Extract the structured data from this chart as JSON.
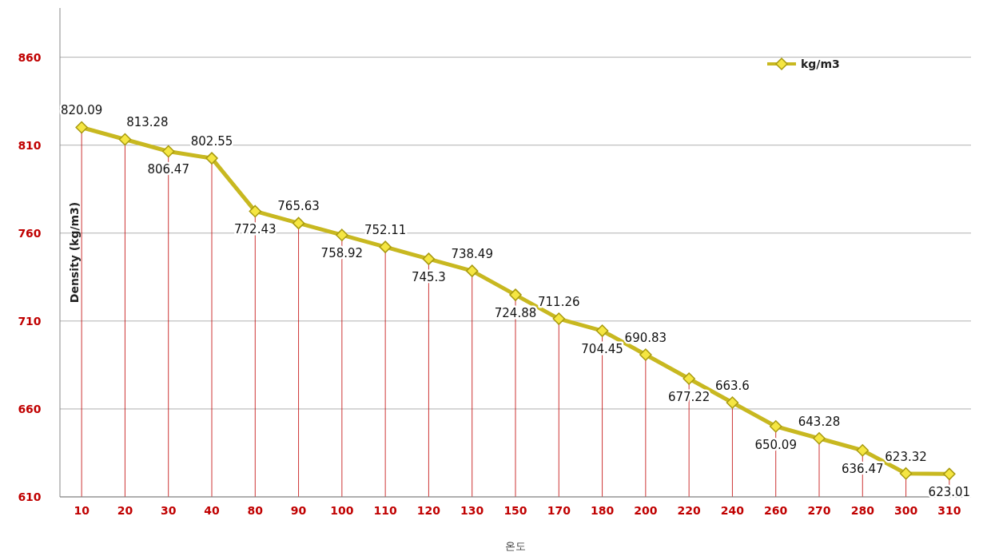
{
  "chart_data": {
    "type": "line",
    "categories": [
      "10",
      "20",
      "30",
      "40",
      "80",
      "90",
      "100",
      "110",
      "120",
      "130",
      "150",
      "170",
      "180",
      "200",
      "220",
      "240",
      "260",
      "270",
      "280",
      "300",
      "310"
    ],
    "series": [
      {
        "name": "kg/m3",
        "color": "#c8b820",
        "values": [
          820.09,
          813.28,
          806.47,
          802.55,
          772.43,
          765.63,
          758.92,
          752.11,
          745.3,
          738.49,
          724.88,
          711.26,
          704.45,
          690.83,
          677.22,
          663.6,
          650.09,
          643.28,
          636.47,
          623.32,
          623.01
        ]
      }
    ],
    "xlabel": "온도",
    "ylabel": "Density (kg/m3)",
    "ylim": [
      610,
      888
    ],
    "yticks": [
      610,
      660,
      710,
      760,
      810,
      860
    ],
    "grid": true,
    "legend": "top right",
    "marker": "diamond",
    "data_labels": true
  }
}
